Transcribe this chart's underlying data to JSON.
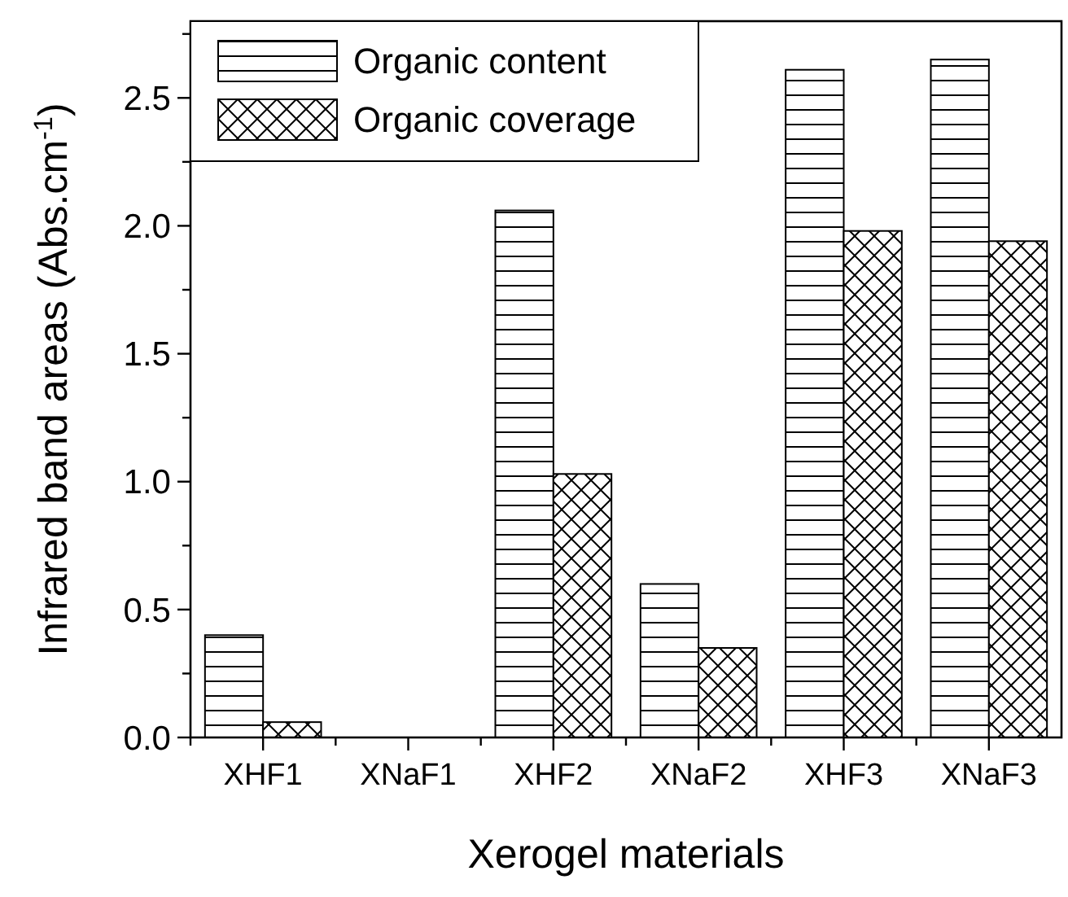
{
  "chart_data": {
    "type": "bar",
    "xlabel": "Xerogel materials",
    "ylabel": "Infrared band areas (Abs.cm$^{-1}$)",
    "categories": [
      "XHF1",
      "XNaF1",
      "XHF2",
      "XNaF2",
      "XHF3",
      "XNaF3"
    ],
    "series": [
      {
        "name": "Organic content",
        "color": "#000000",
        "values": [
          0.4,
          0,
          2.06,
          0.6,
          2.61,
          2.65
        ]
      },
      {
        "name": "Organic coverage",
        "color": "#000000",
        "values": [
          0.06,
          0,
          1.03,
          0.35,
          1.98,
          1.94
        ]
      }
    ],
    "ylim": [
      0,
      2.8
    ],
    "yticks": [
      {
        "value": 0,
        "label": "0.0"
      },
      {
        "value": 0.25,
        "label": null
      },
      0.5,
      {
        "value": 0.75,
        "label": null
      },
      {
        "value": 1,
        "label": "1.0"
      },
      {
        "value": 1.25,
        "label": null
      },
      1.5,
      {
        "value": 1.75,
        "label": null
      },
      {
        "value": 2,
        "label": "2.0"
      },
      {
        "value": 2.25,
        "label": null
      },
      2.5,
      {
        "value": 2.75,
        "label": null
      }
    ],
    "legend": "top left",
    "grid": false
  }
}
